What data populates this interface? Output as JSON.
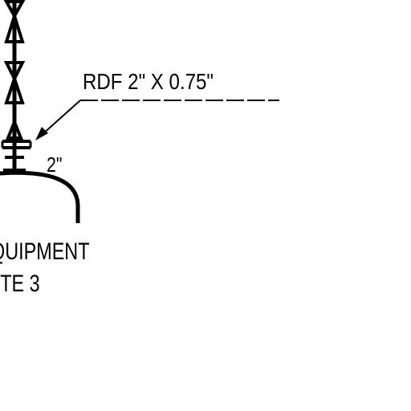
{
  "drawing": {
    "callout_label": "RDF 2\" X 0.75\"",
    "pipe_size_label": "2\"",
    "equipment_label": "QUIPMENT",
    "note_label": "OTE 3",
    "ink_color": "#000000",
    "paper_color": "#ffffff"
  }
}
